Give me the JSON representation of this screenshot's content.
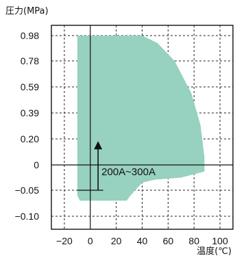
{
  "chart_data": {
    "type": "area",
    "ylabel": "圧力(MPa)",
    "xlabel": "温度(℃)",
    "x_ticks": [
      -20,
      0,
      20,
      40,
      60,
      80,
      100
    ],
    "y_ticks": [
      0.98,
      0.78,
      0.59,
      0.39,
      0.2,
      0,
      -0.05,
      -0.1
    ],
    "y_tick_labels": [
      "0.98",
      "0.78",
      "0.59",
      "0.39",
      "0.20",
      "0",
      "−0.05",
      "−0.10"
    ],
    "xlim": [
      -30,
      110
    ],
    "grid": true,
    "region_color": "#97d1bf",
    "annotation": "200A~300A",
    "operating_region": [
      {
        "x": -10,
        "y": 0.98
      },
      {
        "x": 40,
        "y": 0.98
      },
      {
        "x": 52,
        "y": 0.92
      },
      {
        "x": 65,
        "y": 0.78
      },
      {
        "x": 78,
        "y": 0.54
      },
      {
        "x": 85,
        "y": 0.3
      },
      {
        "x": 88,
        "y": 0.06
      },
      {
        "x": 88,
        "y": -0.013
      },
      {
        "x": 70,
        "y": -0.025
      },
      {
        "x": 50,
        "y": -0.029
      },
      {
        "x": 40,
        "y": -0.035
      },
      {
        "x": 31,
        "y": -0.06
      },
      {
        "x": 28,
        "y": -0.07
      },
      {
        "x": -8,
        "y": -0.07
      },
      {
        "x": -10,
        "y": -0.06
      }
    ]
  }
}
